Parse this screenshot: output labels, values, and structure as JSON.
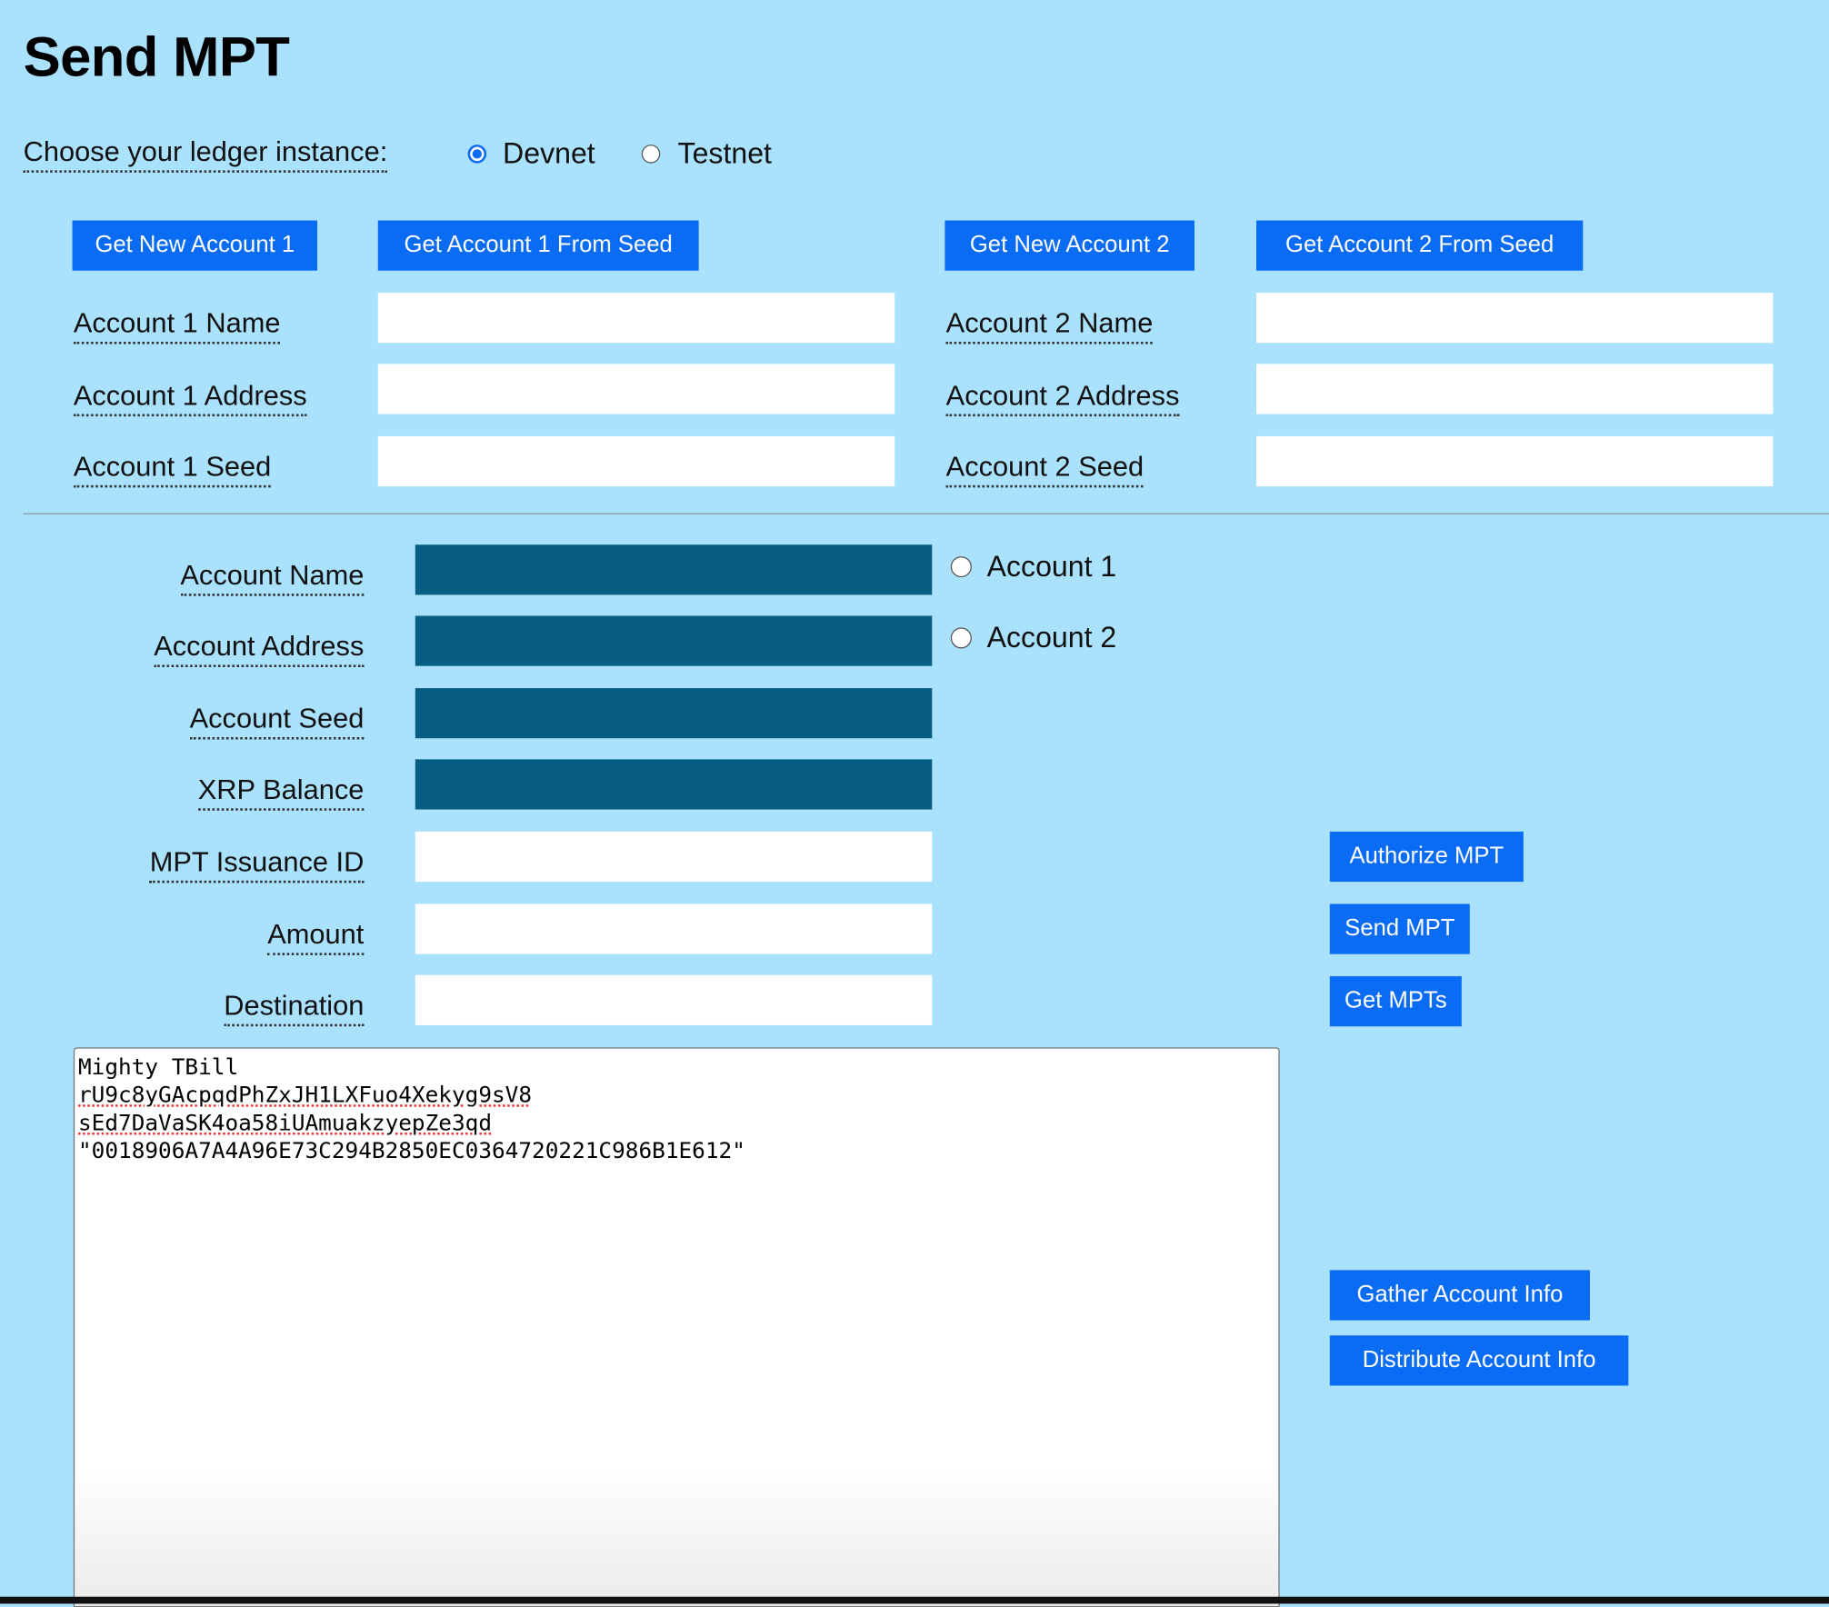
{
  "page": {
    "title": "Send MPT"
  },
  "ledger": {
    "label": "Choose your ledger instance:",
    "options": [
      {
        "label": "Devnet",
        "selected": true
      },
      {
        "label": "Testnet",
        "selected": false
      }
    ]
  },
  "accounts": {
    "get_new_account_1": "Get New Account 1",
    "get_account_1_from_seed": "Get Account 1 From Seed",
    "get_new_account_2": "Get New Account 2",
    "get_account_2_from_seed": "Get Account 2 From Seed",
    "account1": {
      "name_label": "Account 1 Name",
      "address_label": "Account 1 Address",
      "seed_label": "Account 1 Seed",
      "name": "",
      "address": "",
      "seed": ""
    },
    "account2": {
      "name_label": "Account 2 Name",
      "address_label": "Account 2 Address",
      "seed_label": "Account 2 Seed",
      "name": "",
      "address": "",
      "seed": ""
    }
  },
  "form": {
    "account_name_label": "Account Name",
    "account_address_label": "Account Address",
    "account_seed_label": "Account Seed",
    "xrp_balance_label": "XRP Balance",
    "mpt_issuance_id_label": "MPT Issuance ID",
    "amount_label": "Amount",
    "destination_label": "Destination",
    "account_name": "",
    "account_address": "",
    "account_seed": "",
    "xrp_balance": "",
    "mpt_issuance_id": "",
    "amount": "",
    "destination": "",
    "account_select": [
      {
        "label": "Account 1",
        "selected": false
      },
      {
        "label": "Account 2",
        "selected": false
      }
    ]
  },
  "actions": {
    "authorize_mpt": "Authorize MPT",
    "send_mpt": "Send MPT",
    "get_mpts": "Get MPTs",
    "gather_account_info": "Gather Account Info",
    "distribute_account_info": "Distribute Account Info"
  },
  "results": {
    "lines": [
      "Mighty TBill",
      "rU9c8yGAcpqdPhZxJH1LXFuo4Xekyg9sV8",
      "sEd7DaVaSK4oa58iUAmuakzyepZe3qd",
      "\"0018906A7A4A96E73C294B2850EC0364720221C986B1E612\""
    ]
  },
  "colors": {
    "background": "#aae1fd",
    "button": "#0a6cf5",
    "dark_field": "#075e82"
  }
}
